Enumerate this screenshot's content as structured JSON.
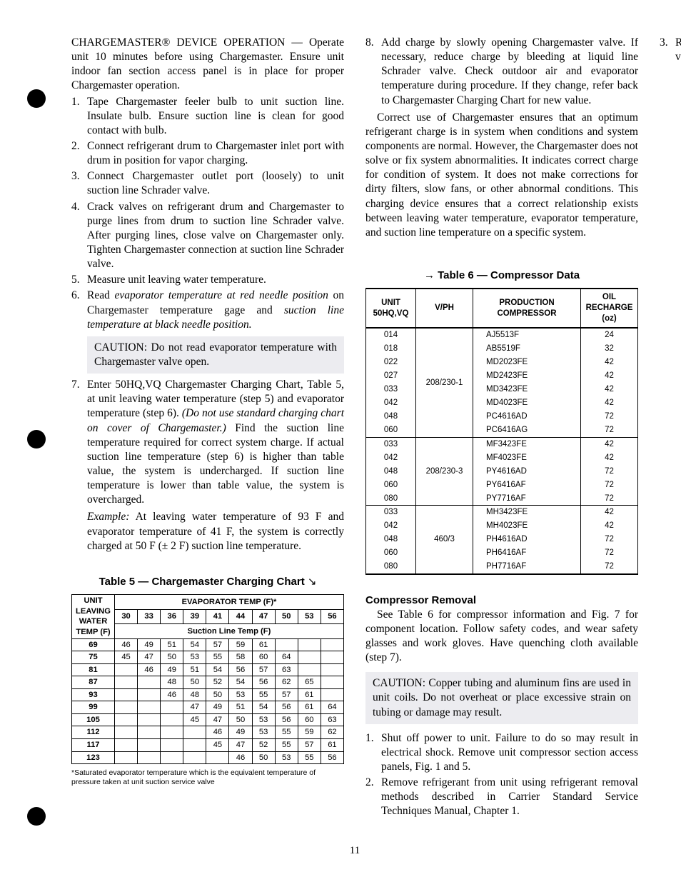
{
  "col1": {
    "head": "CHARGEMASTER® DEVICE OPERATION — Operate unit 10 minutes before using Chargemaster. Ensure unit indoor fan section access panel is in place for proper Chargemaster operation.",
    "steps": [
      "Tape Chargemaster feeler bulb to unit suction line. Insulate bulb. Ensure suction line is clean for good contact with bulb.",
      "Connect refrigerant drum to Chargemaster inlet port with drum in position for vapor charging.",
      "Connect Chargemaster outlet port (loosely) to unit suction line Schrader valve.",
      "Crack valves on refrigerant drum and Chargemaster to purge lines from drum to suction line Schrader valve. After purging lines, close valve on Chargemaster only. Tighten Chargemaster connection at suction line Schrader valve.",
      "Measure unit leaving water temperature."
    ],
    "step6_a": "Read ",
    "step6_it1": "evaporator temperature at red needle position",
    "step6_b": " on Chargemaster temperature gage and ",
    "step6_it2": "suction line temperature at black needle position.",
    "caution1": "CAUTION: Do not read evaporator temperature with Chargemaster valve open.",
    "step7_a": "Enter 50HQ,VQ Chargemaster Charging Chart, Table 5, at unit leaving water temperature (step 5) and evaporator temperature (step 6). ",
    "step7_it": "(Do not use standard charging chart on cover of Chargemaster.)",
    "step7_b": " Find the suction line temperature required for correct system charge. If actual suction line temperature (step 6) is higher than table value, the system is undercharged. If suction line temperature is lower than table value, the system is overcharged.",
    "example_it": "Example:",
    "example_txt": " At leaving water temperature of 93 F and evaporator temperature of 41 F, the system is correctly charged at 50 F (± 2 F) suction line temperature.",
    "t5_title": "Table 5 — Chargemaster Charging Chart",
    "t5_head_left": "UNIT LEAVING WATER TEMP (F)",
    "t5_head_top": "EVAPORATOR TEMP (F)*",
    "t5_head_sub": "Suction Line Temp (F)",
    "t5_cols": [
      "30",
      "33",
      "36",
      "39",
      "41",
      "44",
      "47",
      "50",
      "53",
      "56"
    ],
    "t5_rows": [
      {
        "k": "69",
        "v": [
          "46",
          "49",
          "51",
          "54",
          "57",
          "59",
          "61",
          "",
          "",
          ""
        ]
      },
      {
        "k": "75",
        "v": [
          "45",
          "47",
          "50",
          "53",
          "55",
          "58",
          "60",
          "64",
          "",
          ""
        ]
      },
      {
        "k": "81",
        "v": [
          "",
          "46",
          "49",
          "51",
          "54",
          "56",
          "57",
          "63",
          "",
          ""
        ]
      },
      {
        "k": "87",
        "v": [
          "",
          "",
          "48",
          "50",
          "52",
          "54",
          "56",
          "62",
          "65",
          ""
        ]
      },
      {
        "k": "93",
        "v": [
          "",
          "",
          "46",
          "48",
          "50",
          "53",
          "55",
          "57",
          "61",
          ""
        ]
      },
      {
        "k": "99",
        "v": [
          "",
          "",
          "",
          "47",
          "49",
          "51",
          "54",
          "56",
          "61",
          "64"
        ]
      },
      {
        "k": "105",
        "v": [
          "",
          "",
          "",
          "45",
          "47",
          "50",
          "53",
          "56",
          "60",
          "63"
        ]
      },
      {
        "k": "112",
        "v": [
          "",
          "",
          "",
          "",
          "46",
          "49",
          "53",
          "55",
          "59",
          "62"
        ]
      },
      {
        "k": "117",
        "v": [
          "",
          "",
          "",
          "",
          "45",
          "47",
          "52",
          "55",
          "57",
          "61"
        ]
      },
      {
        "k": "123",
        "v": [
          "",
          "",
          "",
          "",
          "",
          "46",
          "50",
          "53",
          "55",
          "56"
        ]
      }
    ],
    "t5_note": "*Saturated evaporator temperature which is the equivalent temperature of pressure taken at unit suction service valve"
  },
  "col2": {
    "step8": "Add charge by slowly opening Chargemaster valve. If necessary, reduce charge by bleeding at liquid line Schrader valve. Check outdoor air and evaporator temperature during procedure. If they change, refer back to Chargemaster Charging Chart for new value.",
    "para": "Correct use of Chargemaster ensures that an optimum refrigerant charge is in system when conditions and system components are normal. However, the Chargemaster does not solve or fix system abnormalities. It indicates correct charge for condition of system. It does not make corrections for dirty filters, slow fans, or other abnormal conditions. This charging device ensures that a correct relationship exists between leaving water temperature, evaporator temperature, and suction line temperature on a specific system.",
    "t6_title": "→ Table 6 — Compressor Data",
    "t6_head": [
      "UNIT 50HQ,VQ",
      "V/PH",
      "PRODUCTION COMPRESSOR",
      "OIL RECHARGE (oz)"
    ],
    "t6_groups": [
      {
        "vph": "208/230-1",
        "rows": [
          [
            "014",
            "AJ5513F",
            "24"
          ],
          [
            "018",
            "AB5519F",
            "32"
          ],
          [
            "022",
            "MD2023FE",
            "42"
          ],
          [
            "027",
            "MD2423FE",
            "42"
          ],
          [
            "033",
            "MD3423FE",
            "42"
          ],
          [
            "042",
            "MD4023FE",
            "42"
          ],
          [
            "048",
            "PC4616AD",
            "72"
          ],
          [
            "060",
            "PC6416AG",
            "72"
          ]
        ]
      },
      {
        "vph": "208/230-3",
        "rows": [
          [
            "033",
            "MF3423FE",
            "42"
          ],
          [
            "042",
            "MF4023FE",
            "42"
          ],
          [
            "048",
            "PY4616AD",
            "72"
          ],
          [
            "060",
            "PY6416AF",
            "72"
          ],
          [
            "080",
            "PY7716AF",
            "72"
          ]
        ]
      },
      {
        "vph": "460/3",
        "rows": [
          [
            "033",
            "MH3423FE",
            "42"
          ],
          [
            "042",
            "MH4023FE",
            "42"
          ],
          [
            "048",
            "PH4616AD",
            "72"
          ],
          [
            "060",
            "PH6416AF",
            "72"
          ],
          [
            "080",
            "PH7716AF",
            "72"
          ]
        ]
      }
    ],
    "h2": "Compressor Removal",
    "removal_intro": "See Table 6 for compressor information and Fig. 7 for component location. Follow safety codes, and wear safety glasses and work gloves. Have quenching cloth available (step 7).",
    "caution2": "CAUTION: Copper tubing and aluminum fins are used in unit coils. Do not overheat or place excessive strain on tubing or damage may result.",
    "rm_steps": [
      "Shut off power to unit. Failure to do so may result in electrical shock. Remove unit compressor section access panels, Fig. 1 and 5.",
      "Remove refrigerant from unit using refrigerant removal methods described in Carrier Standard Service Techniques Manual, Chapter 1.",
      "Remove core from suction and discharge line Schrader valves."
    ]
  },
  "pagenum": "11"
}
